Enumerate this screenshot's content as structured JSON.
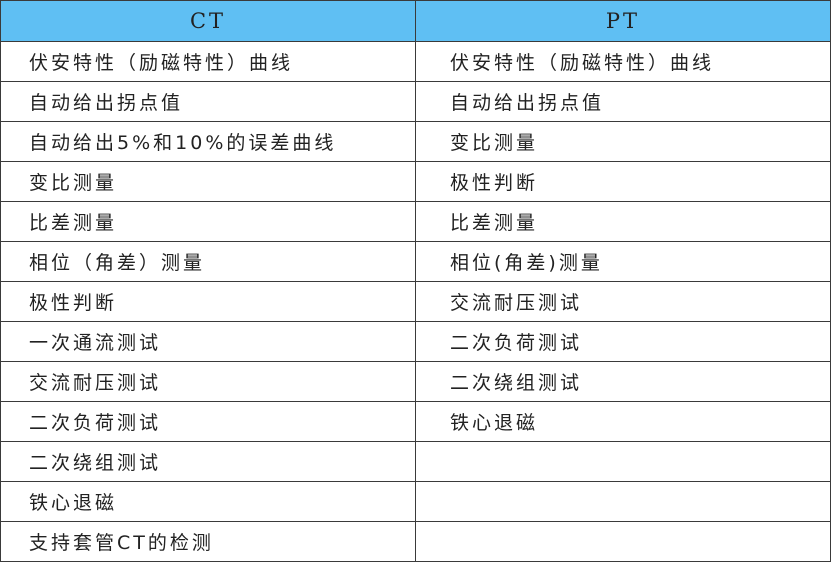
{
  "header": {
    "ct": "CT",
    "pt": "PT"
  },
  "header_color": "#5fbff3",
  "ct_items": [
    "伏安特性（励磁特性）曲线",
    "自动给出拐点值",
    "自动给出5%和10%的误差曲线",
    "变比测量",
    "比差测量",
    "相位（角差）测量",
    "极性判断",
    "一次通流测试",
    "交流耐压测试",
    "二次负荷测试",
    "二次绕组测试",
    "铁心退磁",
    "支持套管CT的检测"
  ],
  "pt_items": [
    "伏安特性（励磁特性）曲线",
    "自动给出拐点值",
    "变比测量",
    "极性判断",
    "比差测量",
    "相位(角差)测量",
    "交流耐压测试",
    "二次负荷测试",
    "二次绕组测试",
    "铁心退磁"
  ]
}
